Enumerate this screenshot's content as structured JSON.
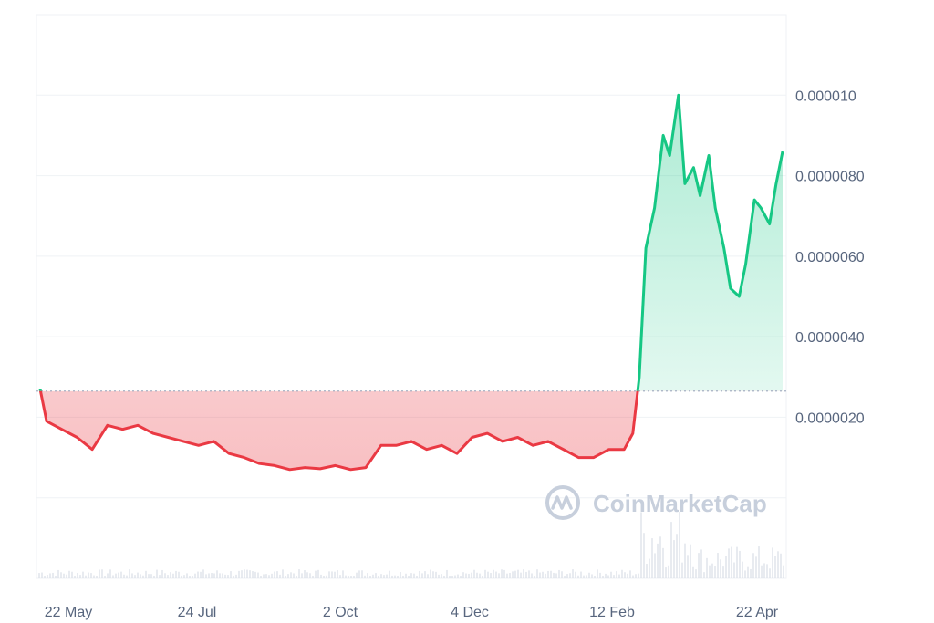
{
  "chart_data": {
    "type": "area",
    "title": "",
    "xlabel": "",
    "ylabel": "",
    "ylim": [
      -2e-06,
      1.2e-05
    ],
    "y_ticks": [
      {
        "value": 1e-05,
        "label": "0.000010"
      },
      {
        "value": 8e-06,
        "label": "0.0000080"
      },
      {
        "value": 6e-06,
        "label": "0.0000060"
      },
      {
        "value": 4e-06,
        "label": "0.0000040"
      },
      {
        "value": 2e-06,
        "label": "0.0000020"
      }
    ],
    "x_ticks": [
      "22 May",
      "24 Jul",
      "2 Oct",
      "4 Dec",
      "12 Feb",
      "22 Apr"
    ],
    "baseline": 2.65e-06,
    "series": [
      {
        "x": [
          "2023-05-19",
          "2023-05-22",
          "2023-05-29",
          "2023-06-05",
          "2023-06-12",
          "2023-06-19",
          "2023-06-26",
          "2023-07-03",
          "2023-07-10",
          "2023-07-17",
          "2023-07-24",
          "2023-07-31",
          "2023-08-07",
          "2023-08-14",
          "2023-08-21",
          "2023-08-28",
          "2023-09-04",
          "2023-09-11",
          "2023-09-18",
          "2023-09-25",
          "2023-10-02",
          "2023-10-09",
          "2023-10-16",
          "2023-10-23",
          "2023-10-30",
          "2023-11-06",
          "2023-11-13",
          "2023-11-20",
          "2023-11-27",
          "2023-12-04",
          "2023-12-11",
          "2023-12-18",
          "2023-12-25",
          "2024-01-01",
          "2024-01-08",
          "2024-01-15",
          "2024-01-22",
          "2024-01-29",
          "2024-02-05",
          "2024-02-12",
          "2024-02-16",
          "2024-02-19",
          "2024-02-22",
          "2024-02-26",
          "2024-03-01",
          "2024-03-04",
          "2024-03-08",
          "2024-03-11",
          "2024-03-15",
          "2024-03-18",
          "2024-03-22",
          "2024-03-25",
          "2024-03-29",
          "2024-04-01",
          "2024-04-05",
          "2024-04-08",
          "2024-04-12",
          "2024-04-15",
          "2024-04-19",
          "2024-04-22",
          "2024-04-25"
        ],
        "values": [
          2.7e-06,
          1.9e-06,
          1.7e-06,
          1.5e-06,
          1.2e-06,
          1.8e-06,
          1.7e-06,
          1.8e-06,
          1.6e-06,
          1.5e-06,
          1.4e-06,
          1.3e-06,
          1.4e-06,
          1.1e-06,
          1e-06,
          8.5e-07,
          8e-07,
          7e-07,
          7.5e-07,
          7.2e-07,
          8e-07,
          7e-07,
          7.5e-07,
          1.3e-06,
          1.3e-06,
          1.4e-06,
          1.2e-06,
          1.3e-06,
          1.1e-06,
          1.5e-06,
          1.6e-06,
          1.4e-06,
          1.5e-06,
          1.3e-06,
          1.4e-06,
          1.2e-06,
          1e-06,
          1e-06,
          1.2e-06,
          1.2e-06,
          1.6e-06,
          3e-06,
          6.2e-06,
          7.2e-06,
          9e-06,
          8.5e-06,
          1e-05,
          7.8e-06,
          8.2e-06,
          7.5e-06,
          8.5e-06,
          7.2e-06,
          6.2e-06,
          5.2e-06,
          5e-06,
          5.8e-06,
          7.4e-06,
          7.2e-06,
          6.8e-06,
          7.8e-06,
          8.6e-06
        ]
      }
    ],
    "colors": {
      "up": "#16c784",
      "down": "#ea3943",
      "baseline": "#a6b0c3"
    }
  },
  "watermark": {
    "text": "CoinMarketCap",
    "icon": "coinmarketcap-logo-icon"
  }
}
